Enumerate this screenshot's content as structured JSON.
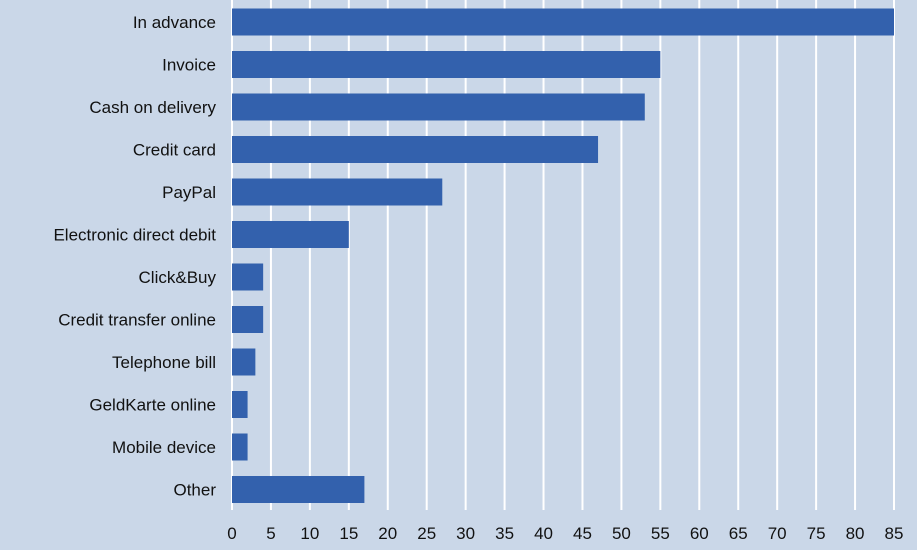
{
  "chart_data": {
    "type": "bar",
    "orientation": "horizontal",
    "categories": [
      "In advance",
      "Invoice",
      "Cash on delivery",
      "Credit card",
      "PayPal",
      "Electronic direct debit",
      "Click&Buy",
      "Credit transfer online",
      "Telephone bill",
      "GeldKarte online",
      "Mobile device",
      "Other"
    ],
    "values": [
      85,
      55,
      53,
      47,
      27,
      15,
      4,
      4,
      3,
      2,
      2,
      17
    ],
    "xlim": [
      0,
      85
    ],
    "xticks": [
      "0",
      "5",
      "10",
      "15",
      "20",
      "25",
      "30",
      "35",
      "40",
      "45",
      "50",
      "55",
      "60",
      "65",
      "70",
      "75",
      "80",
      "85"
    ],
    "grid": "vertical",
    "title": "",
    "xlabel": "",
    "ylabel": "",
    "colors": {
      "bar": "#3361ad",
      "background": "#cad7e8",
      "grid": "#ffffff"
    }
  }
}
